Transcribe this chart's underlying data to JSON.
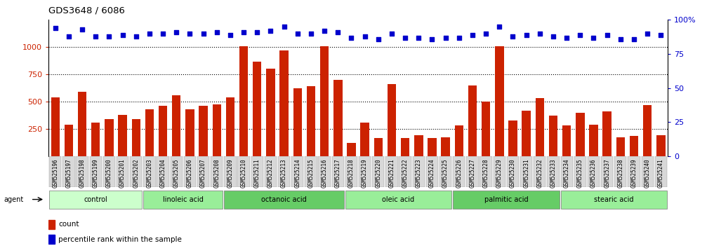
{
  "title": "GDS3648 / 6086",
  "samples": [
    "GSM525196",
    "GSM525197",
    "GSM525198",
    "GSM525199",
    "GSM525200",
    "GSM525201",
    "GSM525202",
    "GSM525203",
    "GSM525204",
    "GSM525205",
    "GSM525206",
    "GSM525207",
    "GSM525208",
    "GSM525209",
    "GSM525210",
    "GSM525211",
    "GSM525212",
    "GSM525213",
    "GSM525214",
    "GSM525215",
    "GSM525216",
    "GSM525217",
    "GSM525218",
    "GSM525219",
    "GSM525220",
    "GSM525221",
    "GSM525222",
    "GSM525223",
    "GSM525224",
    "GSM525225",
    "GSM525226",
    "GSM525227",
    "GSM525228",
    "GSM525229",
    "GSM525230",
    "GSM525231",
    "GSM525232",
    "GSM525233",
    "GSM525234",
    "GSM525235",
    "GSM525236",
    "GSM525237",
    "GSM525238",
    "GSM525239",
    "GSM525240",
    "GSM525241"
  ],
  "counts": [
    540,
    290,
    590,
    310,
    340,
    380,
    340,
    430,
    460,
    560,
    430,
    460,
    475,
    540,
    1010,
    870,
    800,
    970,
    620,
    640,
    1010,
    700,
    120,
    310,
    170,
    660,
    170,
    190,
    170,
    175,
    280,
    650,
    500,
    1010,
    330,
    415,
    530,
    370,
    280,
    400,
    290,
    410,
    175,
    185,
    470,
    190
  ],
  "percentiles": [
    94,
    88,
    93,
    88,
    88,
    89,
    88,
    90,
    90,
    91,
    90,
    90,
    91,
    89,
    91,
    91,
    92,
    95,
    90,
    90,
    92,
    91,
    87,
    88,
    86,
    90,
    87,
    87,
    86,
    87,
    87,
    89,
    90,
    95,
    88,
    89,
    90,
    88,
    87,
    89,
    87,
    89,
    86,
    86,
    90,
    89
  ],
  "groups": [
    {
      "label": "control",
      "start": 0,
      "end": 7,
      "color": "#ccffcc"
    },
    {
      "label": "linoleic acid",
      "start": 7,
      "end": 13,
      "color": "#99ee99"
    },
    {
      "label": "octanoic acid",
      "start": 13,
      "end": 22,
      "color": "#66cc66"
    },
    {
      "label": "oleic acid",
      "start": 22,
      "end": 30,
      "color": "#99ee99"
    },
    {
      "label": "palmitic acid",
      "start": 30,
      "end": 38,
      "color": "#66cc66"
    },
    {
      "label": "stearic acid",
      "start": 38,
      "end": 46,
      "color": "#99ee99"
    }
  ],
  "bar_color": "#cc2200",
  "dot_color": "#0000cc",
  "ylim_left": [
    0,
    1250
  ],
  "ylim_right": [
    0,
    100
  ],
  "yticks_left": [
    250,
    500,
    750,
    1000
  ],
  "yticks_right": [
    0,
    25,
    50,
    75,
    100
  ],
  "background_color": "#ffffff",
  "agent_label": "agent",
  "legend_count_label": "count",
  "legend_pct_label": "percentile rank within the sample"
}
